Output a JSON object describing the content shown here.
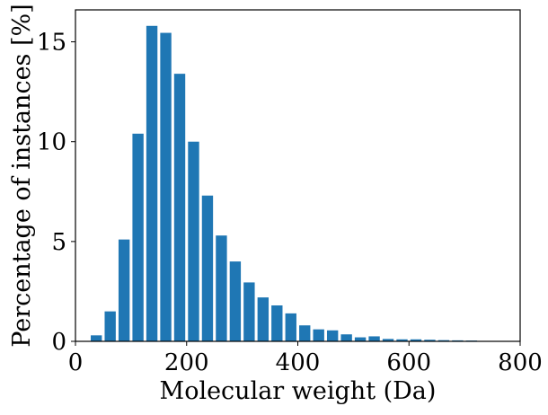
{
  "chart_data": {
    "type": "bar",
    "xlabel": "Molecular weight (Da)",
    "ylabel": "Percentage of instances [%]",
    "xlim": [
      0,
      800
    ],
    "ylim": [
      0,
      16.6
    ],
    "xticks": [
      0,
      200,
      400,
      600,
      800
    ],
    "yticks": [
      0,
      5,
      10,
      15
    ],
    "grid": false,
    "bar_color": "#1f77b4",
    "bin_width": 25,
    "x": [
      37.5,
      62.5,
      87.5,
      112.5,
      137.5,
      162.5,
      187.5,
      212.5,
      237.5,
      262.5,
      287.5,
      312.5,
      337.5,
      362.5,
      387.5,
      412.5,
      437.5,
      462.5,
      487.5,
      512.5,
      537.5,
      562.5,
      587.5,
      612.5,
      637.5,
      662.5,
      687.5,
      712.5
    ],
    "values": [
      0.3,
      1.5,
      5.1,
      10.4,
      15.8,
      15.45,
      13.4,
      10.0,
      7.3,
      5.3,
      4.0,
      2.95,
      2.2,
      1.8,
      1.4,
      0.8,
      0.6,
      0.55,
      0.35,
      0.2,
      0.25,
      0.12,
      0.1,
      0.1,
      0.08,
      0.06,
      0.05,
      0.04
    ]
  }
}
